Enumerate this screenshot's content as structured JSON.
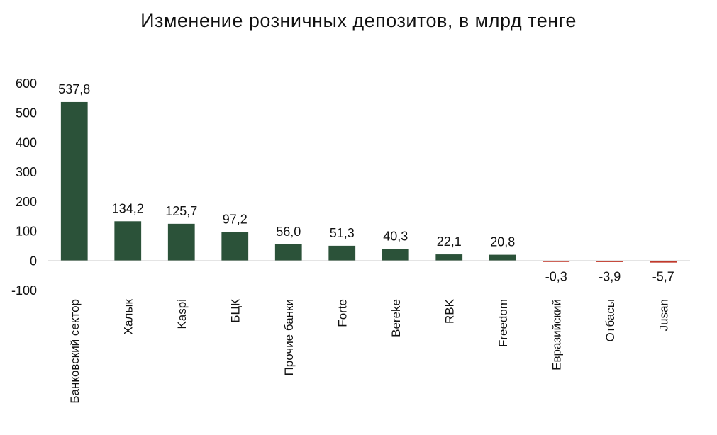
{
  "chart_data": {
    "type": "bar",
    "title": "Изменение розничных депозитов, в млрд тенге",
    "categories": [
      "Банковский сектор",
      "Халык",
      "Kaspi",
      "БЦК",
      "Прочие банки",
      "Forte",
      "Bereke",
      "RBK",
      "Freedom",
      "Евразийский",
      "Отбасы",
      "Jusan"
    ],
    "values": [
      537.8,
      134.2,
      125.7,
      97.2,
      56.0,
      51.3,
      40.3,
      22.1,
      20.8,
      -0.3,
      -3.9,
      -5.7
    ],
    "data_labels": [
      "537,8",
      "134,2",
      "125,7",
      "97,2",
      "56,0",
      "51,3",
      "40,3",
      "22,1",
      "20,8",
      "-0,3",
      "-3,9",
      "-5,7"
    ],
    "y_ticks": [
      -100,
      0,
      100,
      200,
      300,
      400,
      500,
      600
    ],
    "ylim": [
      -100,
      600
    ],
    "grid": false,
    "colors": {
      "positive": "#2b5239",
      "negative": "#c0392b",
      "axis": "#c8c8c8",
      "text": "#111111"
    }
  }
}
